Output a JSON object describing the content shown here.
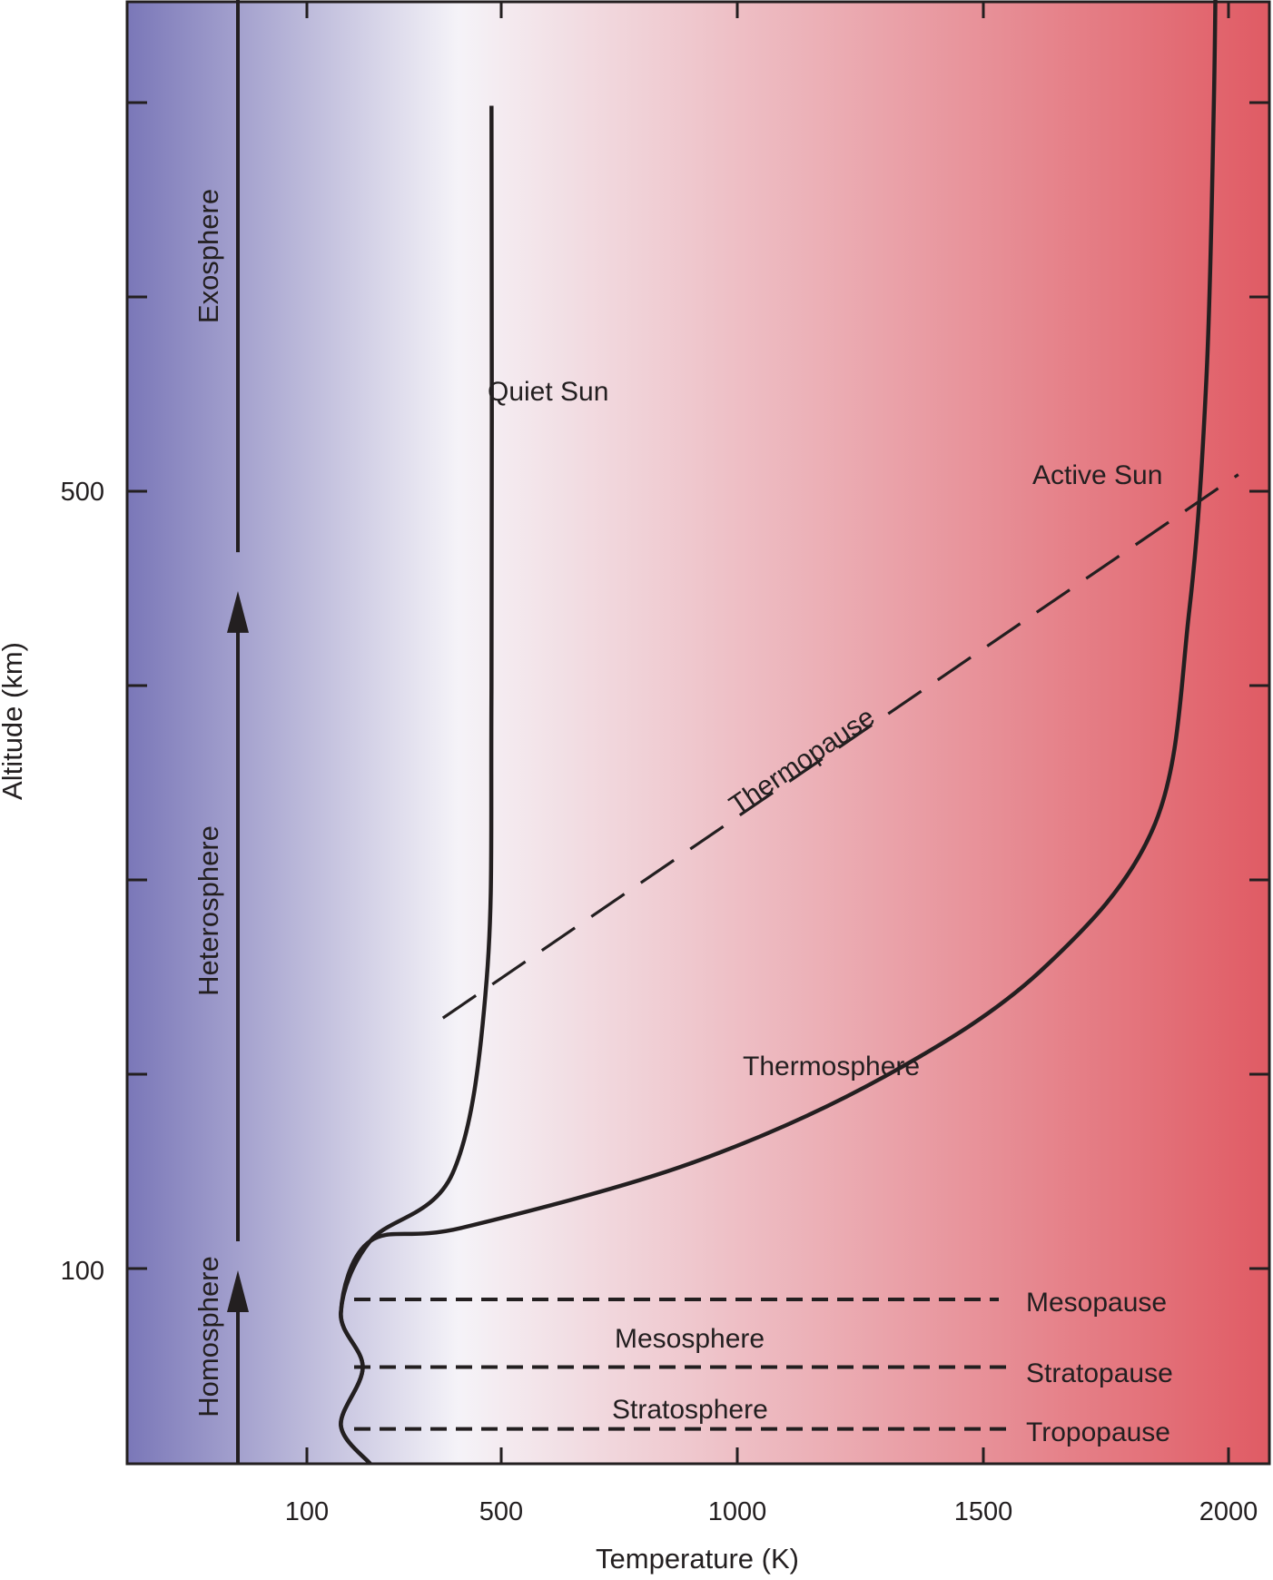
{
  "chart_data": {
    "type": "line",
    "xlabel": "Temperature (K)",
    "ylabel": "Altitude (km)",
    "x_ticks": [
      "100",
      "500",
      "1000",
      "1500",
      "2000"
    ],
    "y_ticks": [
      "500",
      "100"
    ],
    "background_gradient": {
      "cold": "#7a77b8",
      "mid": "#f5f3f8",
      "hot": "#e05b64"
    },
    "series": [
      {
        "name": "Quiet Sun",
        "points": [
          [
            230,
            0
          ],
          [
            170,
            20
          ],
          [
            215,
            50
          ],
          [
            170,
            78
          ],
          [
            230,
            115
          ],
          [
            400,
            150
          ],
          [
            470,
            250
          ],
          [
            480,
            400
          ],
          [
            480,
            700
          ]
        ]
      },
      {
        "name": "Active Sun",
        "points": [
          [
            230,
            0
          ],
          [
            170,
            20
          ],
          [
            215,
            50
          ],
          [
            170,
            78
          ],
          [
            230,
            115
          ],
          [
            420,
            122
          ],
          [
            900,
            155
          ],
          [
            1300,
            200
          ],
          [
            1620,
            255
          ],
          [
            1850,
            330
          ],
          [
            1920,
            440
          ],
          [
            1955,
            560
          ],
          [
            1970,
            700
          ],
          [
            1975,
            800
          ]
        ]
      }
    ],
    "boundary_lines": [
      {
        "label": "Mesopause",
        "altitude": 85
      },
      {
        "label": "Stratopause",
        "altitude": 50
      },
      {
        "label": "Tropopause",
        "altitude": 18
      }
    ],
    "thermopause_line": {
      "label": "Thermopause",
      "from": [
        380,
        230
      ],
      "to": [
        2020,
        510
      ]
    },
    "layer_labels": [
      "Thermosphere",
      "Mesosphere",
      "Stratosphere"
    ],
    "regions": [
      {
        "label": "Homosphere",
        "from": 0,
        "to": 100
      },
      {
        "label": "Heterosphere",
        "from": 115,
        "to": 450
      },
      {
        "label": "Exosphere",
        "from": 470,
        "to": 800
      }
    ],
    "annotations": [
      "Quiet Sun",
      "Active Sun"
    ]
  }
}
